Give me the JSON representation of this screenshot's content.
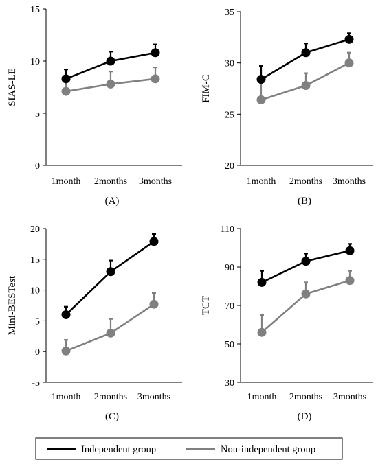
{
  "legend": {
    "entries": [
      {
        "label": "Independent group",
        "color": "#000000"
      },
      {
        "label": "Non-independent group",
        "color": "#808080"
      }
    ]
  },
  "chart_data": [
    {
      "type": "line",
      "panel_label": "(A)",
      "ylabel": "SIAS-LE",
      "categories": [
        "1month",
        "2months",
        "3months"
      ],
      "yticks": [
        "0",
        "5",
        "10",
        "15"
      ],
      "ylim": [
        0,
        15
      ],
      "series": [
        {
          "name": "Independent group",
          "color": "#000000",
          "values": [
            8.3,
            10.0,
            10.8
          ],
          "errors": [
            0.9,
            0.9,
            0.8
          ]
        },
        {
          "name": "Non-independent group",
          "color": "#808080",
          "values": [
            7.1,
            7.8,
            8.3
          ],
          "errors": [
            1.2,
            1.2,
            1.1
          ]
        }
      ]
    },
    {
      "type": "line",
      "panel_label": "(B)",
      "ylabel": "FIM-C",
      "categories": [
        "1month",
        "2months",
        "3months"
      ],
      "yticks": [
        "20",
        "25",
        "30",
        "35"
      ],
      "ylim": [
        20,
        35
      ],
      "series": [
        {
          "name": "Independent group",
          "color": "#000000",
          "values": [
            28.4,
            31.0,
            32.3
          ],
          "errors": [
            1.3,
            0.9,
            0.6
          ]
        },
        {
          "name": "Non-independent group",
          "color": "#808080",
          "values": [
            26.4,
            27.8,
            30.0
          ],
          "errors": [
            1.6,
            1.2,
            1.0
          ]
        }
      ]
    },
    {
      "type": "line",
      "panel_label": "(C)",
      "ylabel": "Mini-BESTest",
      "categories": [
        "1month",
        "2months",
        "3months"
      ],
      "yticks": [
        "-5",
        "0",
        "5",
        "10",
        "15",
        "20"
      ],
      "ylim": [
        -5,
        20
      ],
      "series": [
        {
          "name": "Independent group",
          "color": "#000000",
          "values": [
            6.0,
            13.0,
            17.9
          ],
          "errors": [
            1.3,
            1.8,
            1.2
          ]
        },
        {
          "name": "Non-independent group",
          "color": "#808080",
          "values": [
            0.1,
            3.0,
            7.7
          ],
          "errors": [
            1.8,
            2.3,
            1.8
          ]
        }
      ]
    },
    {
      "type": "line",
      "panel_label": "(D)",
      "ylabel": "TCT",
      "categories": [
        "1month",
        "2months",
        "3months"
      ],
      "yticks": [
        "30",
        "50",
        "70",
        "90",
        "110"
      ],
      "ylim": [
        30,
        110
      ],
      "series": [
        {
          "name": "Independent group",
          "color": "#000000",
          "values": [
            82,
            93,
            98.5
          ],
          "errors": [
            6,
            4,
            3.5
          ]
        },
        {
          "name": "Non-independent group",
          "color": "#808080",
          "values": [
            56,
            76,
            83
          ],
          "errors": [
            9,
            6,
            5
          ]
        }
      ]
    }
  ]
}
